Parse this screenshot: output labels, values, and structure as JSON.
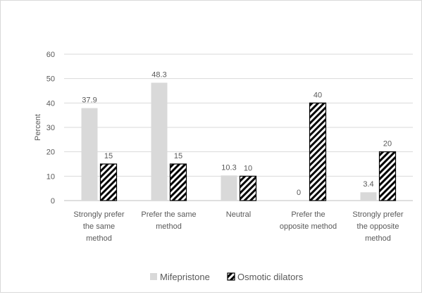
{
  "chart_data": {
    "type": "bar",
    "title": "",
    "xlabel": "",
    "ylabel": "Percent",
    "ylim": [
      0,
      60
    ],
    "yticks": [
      0,
      10,
      20,
      30,
      40,
      50,
      60
    ],
    "grid": true,
    "legend_position": "bottom",
    "categories": [
      [
        "Strongly prefer",
        "the same",
        "method"
      ],
      [
        "Prefer the same",
        "method"
      ],
      [
        "Neutral"
      ],
      [
        "Prefer the",
        "opposite method"
      ],
      [
        "Strongly prefer",
        "the opposite",
        "method"
      ]
    ],
    "series": [
      {
        "name": "Mifepristone",
        "values": [
          37.9,
          48.3,
          10.3,
          0,
          3.4
        ],
        "labels": [
          "37.9",
          "48.3",
          "10.3",
          "0",
          "3.4"
        ],
        "fill": "#d9d9d9"
      },
      {
        "name": "Osmotic dilators",
        "values": [
          15,
          15,
          10,
          40,
          20
        ],
        "labels": [
          "15",
          "15",
          "10",
          "40",
          "20"
        ],
        "fill": "hatch"
      }
    ]
  }
}
